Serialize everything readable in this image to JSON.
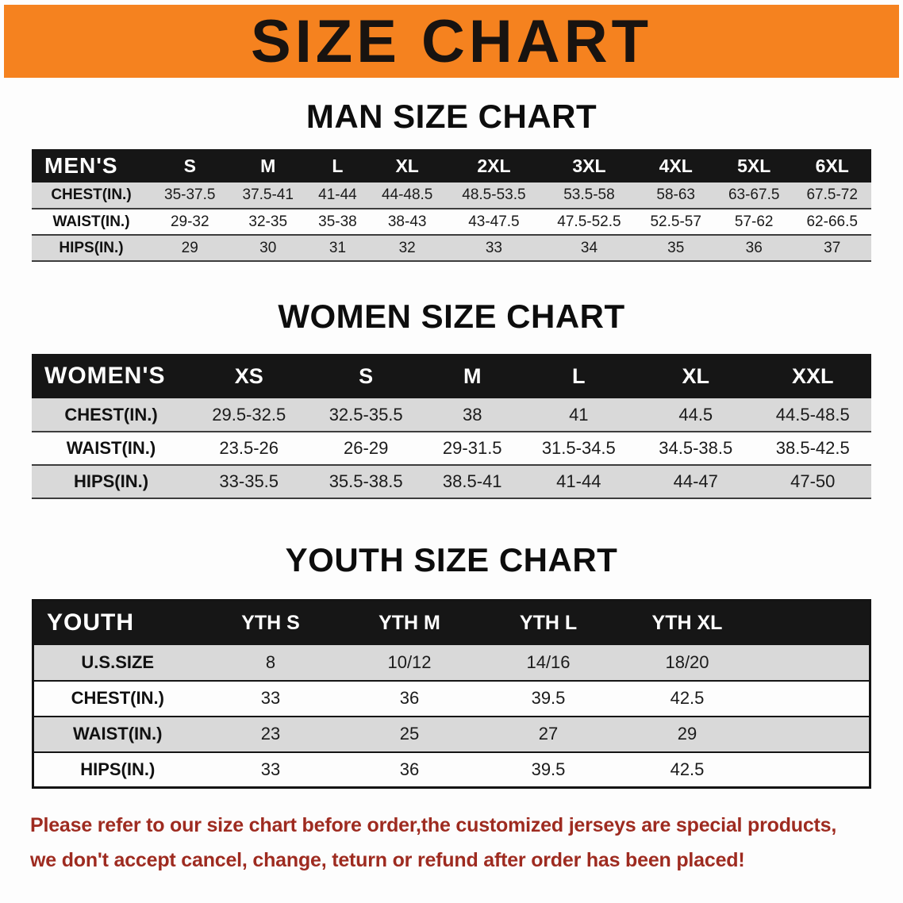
{
  "banner": {
    "title": "SIZE CHART"
  },
  "sections": {
    "men": {
      "heading": "MAN SIZE CHART",
      "table": {
        "header": [
          "MEN'S",
          "S",
          "M",
          "L",
          "XL",
          "2XL",
          "3XL",
          "4XL",
          "5XL",
          "6XL"
        ],
        "rows": [
          [
            "CHEST(IN.)",
            "35-37.5",
            "37.5-41",
            "41-44",
            "44-48.5",
            "48.5-53.5",
            "53.5-58",
            "58-63",
            "63-67.5",
            "67.5-72"
          ],
          [
            "WAIST(IN.)",
            "29-32",
            "32-35",
            "35-38",
            "38-43",
            "43-47.5",
            "47.5-52.5",
            "52.5-57",
            "57-62",
            "62-66.5"
          ],
          [
            "HIPS(IN.)",
            "29",
            "30",
            "31",
            "32",
            "33",
            "34",
            "35",
            "36",
            "37"
          ]
        ]
      }
    },
    "women": {
      "heading": "WOMEN SIZE CHART",
      "table": {
        "header": [
          "WOMEN'S",
          "XS",
          "S",
          "M",
          "L",
          "XL",
          "XXL"
        ],
        "rows": [
          [
            "CHEST(IN.)",
            "29.5-32.5",
            "32.5-35.5",
            "38",
            "41",
            "44.5",
            "44.5-48.5"
          ],
          [
            "WAIST(IN.)",
            "23.5-26",
            "26-29",
            "29-31.5",
            "31.5-34.5",
            "34.5-38.5",
            "38.5-42.5"
          ],
          [
            "HIPS(IN.)",
            "33-35.5",
            "35.5-38.5",
            "38.5-41",
            "41-44",
            "44-47",
            "47-50"
          ]
        ]
      }
    },
    "youth": {
      "heading": "YOUTH SIZE CHART",
      "table": {
        "header": [
          "YOUTH",
          "YTH S",
          "YTH M",
          "YTH L",
          "YTH XL",
          ""
        ],
        "rows": [
          [
            "U.S.SIZE",
            "8",
            "10/12",
            "14/16",
            "18/20",
            ""
          ],
          [
            "CHEST(IN.)",
            "33",
            "36",
            "39.5",
            "42.5",
            ""
          ],
          [
            "WAIST(IN.)",
            "23",
            "25",
            "27",
            "29",
            ""
          ],
          [
            "HIPS(IN.)",
            "33",
            "36",
            "39.5",
            "42.5",
            ""
          ]
        ]
      }
    }
  },
  "disclaimer": {
    "line1": "Please refer to our size chart before order,the customized jerseys are special products,",
    "line2": "we don't accept cancel, change, teturn or refund after order has been placed!"
  },
  "colors": {
    "banner_bg": "#f5821f",
    "table_header_bg": "#161616",
    "stripe": "#d9d9d9",
    "disclaimer_color": "#9e2b20"
  }
}
